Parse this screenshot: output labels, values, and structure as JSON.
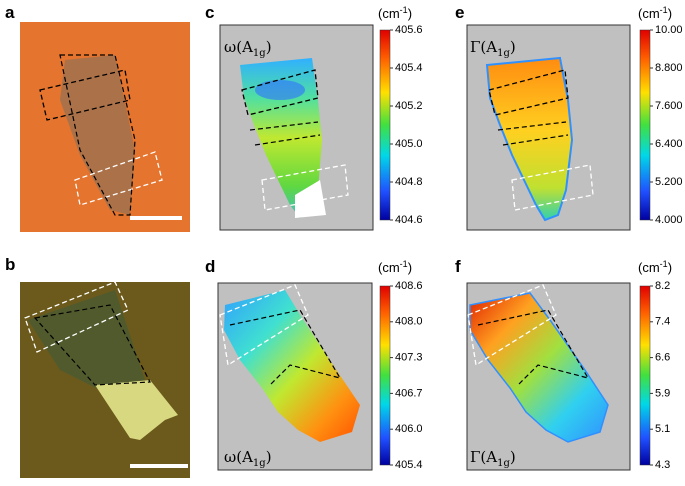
{
  "panels": [
    {
      "label": "a"
    },
    {
      "label": "b"
    },
    {
      "label": "c",
      "map_label": {
        "prefix": "ω(A",
        "sub": "1g",
        "suffix": ")"
      },
      "unit": {
        "base": "(cm",
        "sup": "-1",
        "close": ")"
      },
      "ticks": [
        "405.6",
        "405.4",
        "405.2",
        "405.0",
        "404.8",
        "404.6"
      ]
    },
    {
      "label": "d",
      "map_label": {
        "prefix": "ω(A",
        "sub": "1g",
        "suffix": ")"
      },
      "unit": {
        "base": "(cm",
        "sup": "-1",
        "close": ")"
      },
      "ticks": [
        "408.6",
        "408.0",
        "407.3",
        "406.7",
        "406.0",
        "405.4"
      ]
    },
    {
      "label": "e",
      "map_label": {
        "prefix": "Γ(A",
        "sub": "1g",
        "suffix": ")"
      },
      "unit": {
        "base": "(cm",
        "sup": "-1",
        "close": ")"
      },
      "ticks": [
        "10.00",
        "8.800",
        "7.600",
        "6.400",
        "5.200",
        "4.000"
      ]
    },
    {
      "label": "f",
      "map_label": {
        "prefix": "Γ(A",
        "sub": "1g",
        "suffix": ")"
      },
      "unit": {
        "base": "(cm",
        "sup": "-1",
        "close": ")"
      },
      "ticks": [
        "8.2",
        "7.4",
        "6.6",
        "5.9",
        "5.1",
        "4.3"
      ]
    }
  ]
}
